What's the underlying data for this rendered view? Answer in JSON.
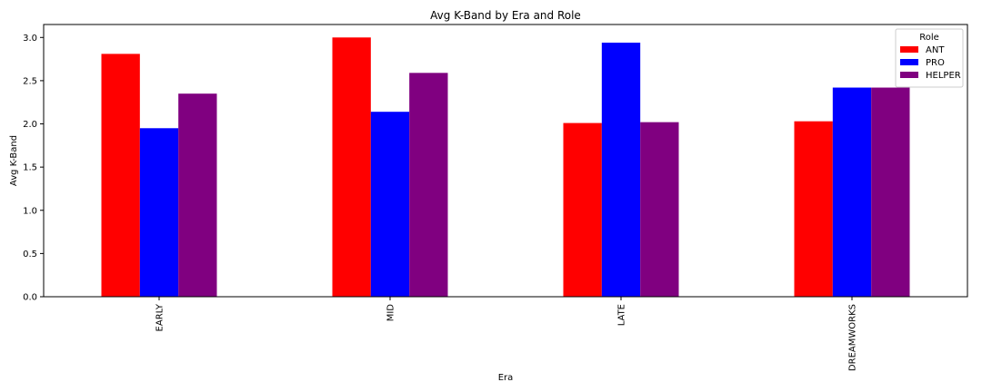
{
  "chart_data": {
    "type": "bar",
    "title": "Avg K-Band by Era and Role",
    "xlabel": "Era",
    "ylabel": "Avg K-Band",
    "categories": [
      "EARLY",
      "MID",
      "LATE",
      "DREAMWORKS"
    ],
    "series": [
      {
        "name": "ANT",
        "color": "#ff0000",
        "values": [
          2.81,
          3.0,
          2.01,
          2.03
        ]
      },
      {
        "name": "PRO",
        "color": "#0000ff",
        "values": [
          1.95,
          2.14,
          2.94,
          2.42
        ]
      },
      {
        "name": "HELPER",
        "color": "#800080",
        "values": [
          2.35,
          2.59,
          2.02,
          2.42
        ]
      }
    ],
    "ylim": [
      0,
      3.15
    ],
    "yticks": [
      "0.0",
      "0.5",
      "1.0",
      "1.5",
      "2.0",
      "2.5",
      "3.0"
    ],
    "grid": false,
    "legend": {
      "title": "Role",
      "placement": "top-right"
    }
  }
}
